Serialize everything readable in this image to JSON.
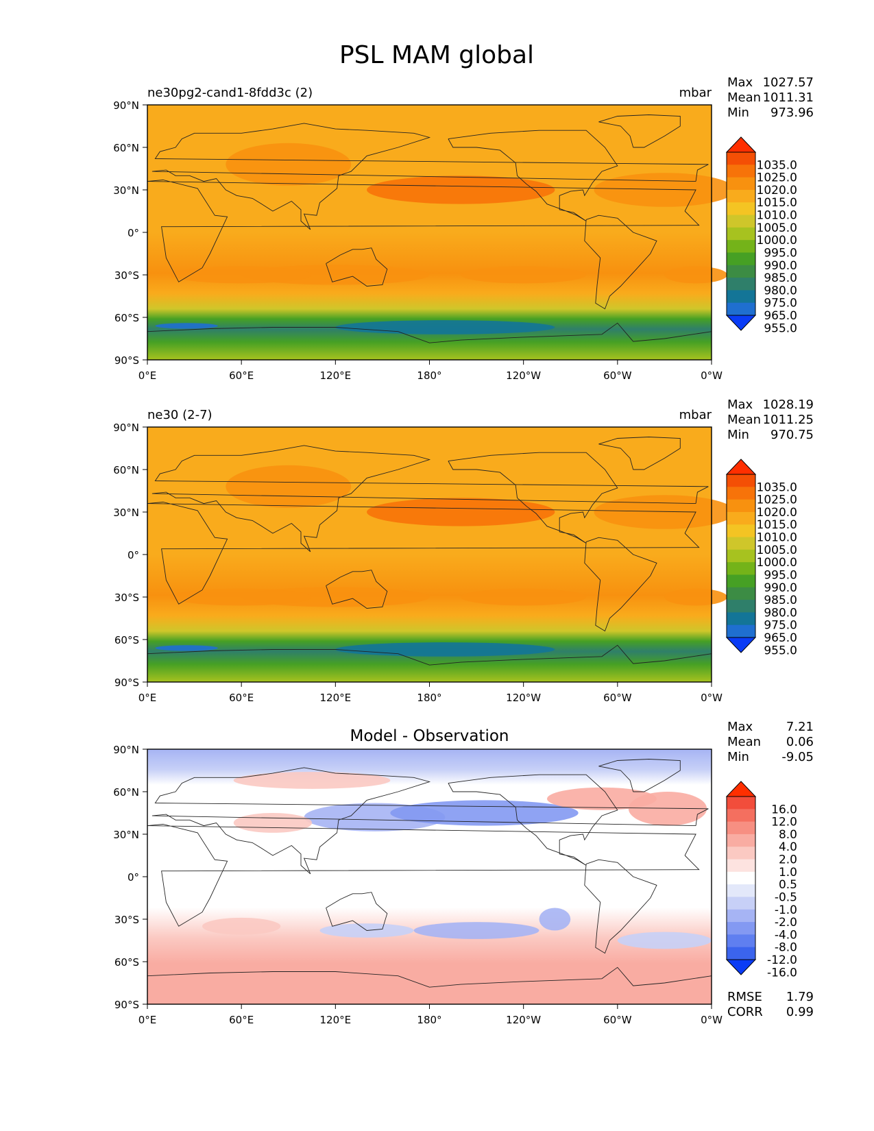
{
  "figure_title": "PSL MAM global",
  "lat_ticks": [
    "90°N",
    "60°N",
    "30°N",
    "0°",
    "30°S",
    "60°S",
    "90°S"
  ],
  "lon_ticks": [
    "0°E",
    "60°E",
    "120°E",
    "180°",
    "120°W",
    "60°W",
    "0°W"
  ],
  "chart_data": [
    {
      "type": "heatmap",
      "title_left": "ne30pg2-cand1-8fdd3c (2)",
      "title_center": "",
      "units": "mbar",
      "stats": [
        {
          "label": "Max",
          "value": "1027.57"
        },
        {
          "label": "Mean",
          "value": "1011.31"
        },
        {
          "label": "Min",
          "value": "973.96"
        }
      ],
      "colorbar": {
        "colors": [
          "#0a3cf5",
          "#1f6fd0",
          "#137597",
          "#2f7f6a",
          "#3c8c44",
          "#46a024",
          "#74b319",
          "#a7c21f",
          "#cfc62a",
          "#f4c423",
          "#f9ab1c",
          "#f8910f",
          "#f77309",
          "#f44f05",
          "#ff2f00"
        ],
        "labels": [
          "955.0",
          "965.0",
          "975.0",
          "980.0",
          "985.0",
          "990.0",
          "995.0",
          "1000.0",
          "1005.0",
          "1010.0",
          "1015.0",
          "1020.0",
          "1025.0",
          "1035.0"
        ]
      },
      "extra_stats": [],
      "x_range": [
        0,
        360
      ],
      "y_range": [
        -90,
        90
      ],
      "grid": false
    },
    {
      "type": "heatmap",
      "title_left": "ne30 (2-7)",
      "title_center": "",
      "units": "mbar",
      "stats": [
        {
          "label": "Max",
          "value": "1028.19"
        },
        {
          "label": "Mean",
          "value": "1011.25"
        },
        {
          "label": "Min",
          "value": "970.75"
        }
      ],
      "colorbar": {
        "colors": [
          "#0a3cf5",
          "#1f6fd0",
          "#137597",
          "#2f7f6a",
          "#3c8c44",
          "#46a024",
          "#74b319",
          "#a7c21f",
          "#cfc62a",
          "#f4c423",
          "#f9ab1c",
          "#f8910f",
          "#f77309",
          "#f44f05",
          "#ff2f00"
        ],
        "labels": [
          "955.0",
          "965.0",
          "975.0",
          "980.0",
          "985.0",
          "990.0",
          "995.0",
          "1000.0",
          "1005.0",
          "1010.0",
          "1015.0",
          "1020.0",
          "1025.0",
          "1035.0"
        ]
      },
      "extra_stats": [],
      "x_range": [
        0,
        360
      ],
      "y_range": [
        -90,
        90
      ],
      "grid": false
    },
    {
      "type": "heatmap",
      "title_left": "",
      "title_center": "Model - Observation",
      "units": "",
      "stats": [
        {
          "label": "Max",
          "value": "7.21"
        },
        {
          "label": "Mean",
          "value": "0.06"
        },
        {
          "label": "Min",
          "value": "-9.05"
        }
      ],
      "colorbar": {
        "colors": [
          "#0a3cf5",
          "#3b64ed",
          "#5f7ff0",
          "#8399f2",
          "#a6b4f4",
          "#c7d0f7",
          "#e3e8fa",
          "#ffffff",
          "#fde3e0",
          "#fbc9c2",
          "#f9aca2",
          "#f78f82",
          "#f46f5f",
          "#f24d3b",
          "#ff2f00"
        ],
        "labels": [
          "-16.0",
          "-12.0",
          "-8.0",
          "-4.0",
          "-2.0",
          "-1.0",
          "-0.5",
          "0.5",
          "1.0",
          "2.0",
          "4.0",
          "8.0",
          "12.0",
          "16.0"
        ]
      },
      "extra_stats": [
        {
          "label": "RMSE",
          "value": "1.79"
        },
        {
          "label": "CORR",
          "value": "0.99"
        }
      ],
      "x_range": [
        0,
        360
      ],
      "y_range": [
        -90,
        90
      ],
      "grid": false
    }
  ]
}
